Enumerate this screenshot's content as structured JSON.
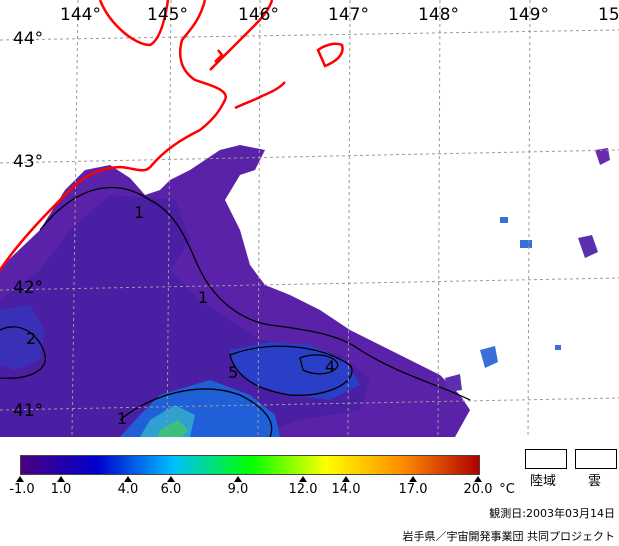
{
  "map": {
    "lon_labels": [
      "144°",
      "145°",
      "146°",
      "147°",
      "148°",
      "149°",
      "15"
    ],
    "lat_labels": [
      "44°",
      "43°",
      "42°",
      "41°"
    ],
    "contour_labels": [
      "1",
      "1",
      "2",
      "1",
      "5",
      "4"
    ],
    "coastline_color": "#ff0000"
  },
  "colorbar": {
    "ticks": [
      "-1.0",
      "1.0",
      "4.0",
      "6.0",
      "9.0",
      "12.0",
      "14.0",
      "17.0",
      "20.0"
    ],
    "unit": "°C",
    "colors": [
      "#4b0082",
      "#0000cd",
      "#00bfff",
      "#00ff00",
      "#ffff00",
      "#ff8c00",
      "#b00000"
    ]
  },
  "legend": {
    "land_label": "陸域",
    "cloud_label": "雲"
  },
  "observation_date": "観測日:2003年03月14日",
  "credit": "岩手県／宇宙開発事業団 共同プロジェクト"
}
